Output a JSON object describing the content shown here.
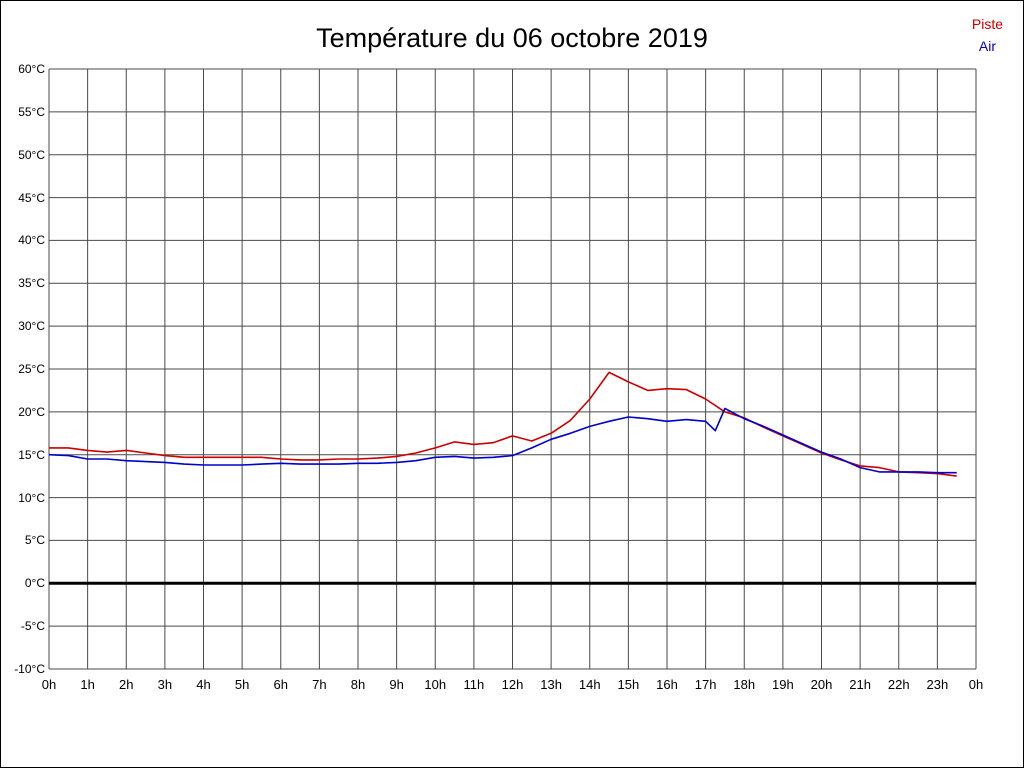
{
  "page": {
    "background": "#ffffff",
    "border_color": "#000000"
  },
  "chart_data": {
    "type": "line",
    "title": "Température du 06 octobre 2019",
    "xlabel": "",
    "ylabel": "",
    "xlim": [
      0,
      24
    ],
    "ylim": [
      -10,
      60
    ],
    "ytick_step": 5,
    "ytick_suffix": "°C",
    "x_tick_labels": [
      "0h",
      "1h",
      "2h",
      "3h",
      "4h",
      "5h",
      "6h",
      "7h",
      "8h",
      "9h",
      "10h",
      "11h",
      "12h",
      "13h",
      "14h",
      "15h",
      "16h",
      "17h",
      "18h",
      "19h",
      "20h",
      "21h",
      "22h",
      "23h",
      "0h"
    ],
    "grid": true,
    "grid_color": "#4a4a4a",
    "zero_line": {
      "value": 0,
      "color": "#000000",
      "width": 3
    },
    "legend_position": "top-right",
    "series": [
      {
        "name": "Piste",
        "color": "#cc0000",
        "x": [
          0,
          0.5,
          1,
          1.5,
          2,
          2.5,
          3,
          3.5,
          4,
          4.5,
          5,
          5.5,
          6,
          6.5,
          7,
          7.5,
          8,
          8.5,
          9,
          9.5,
          10,
          10.5,
          11,
          11.5,
          12,
          12.5,
          13,
          13.5,
          14,
          14.5,
          15,
          15.5,
          16,
          16.5,
          17,
          17.5,
          18,
          18.5,
          19,
          19.5,
          20,
          20.5,
          21,
          21.5,
          22,
          22.5,
          23,
          23.5
        ],
        "values": [
          15.8,
          15.8,
          15.5,
          15.3,
          15.5,
          15.2,
          14.9,
          14.7,
          14.7,
          14.7,
          14.7,
          14.7,
          14.5,
          14.4,
          14.4,
          14.5,
          14.5,
          14.6,
          14.8,
          15.2,
          15.8,
          16.5,
          16.2,
          16.4,
          17.2,
          16.6,
          17.5,
          19.0,
          21.5,
          24.6,
          23.5,
          22.5,
          22.7,
          22.6,
          21.5,
          20.0,
          19.3,
          18.2,
          17.2,
          16.2,
          15.2,
          14.4,
          13.7,
          13.5,
          13.0,
          12.9,
          12.8,
          12.5
        ]
      },
      {
        "name": "Air",
        "color": "#0000cc",
        "x": [
          0,
          0.5,
          1,
          1.5,
          2,
          2.5,
          3,
          3.5,
          4,
          4.5,
          5,
          5.5,
          6,
          6.5,
          7,
          7.5,
          8,
          8.5,
          9,
          9.5,
          10,
          10.5,
          11,
          11.5,
          12,
          12.5,
          13,
          13.5,
          14,
          14.5,
          15,
          15.5,
          16,
          16.5,
          17,
          17.25,
          17.5,
          18,
          18.5,
          19,
          19.5,
          20,
          20.5,
          21,
          21.5,
          22,
          22.5,
          23,
          23.5
        ],
        "values": [
          15.0,
          14.9,
          14.5,
          14.5,
          14.3,
          14.2,
          14.1,
          13.9,
          13.8,
          13.8,
          13.8,
          13.9,
          14.0,
          13.9,
          13.9,
          13.9,
          14.0,
          14.0,
          14.1,
          14.3,
          14.7,
          14.8,
          14.6,
          14.7,
          14.9,
          15.8,
          16.8,
          17.5,
          18.3,
          18.9,
          19.4,
          19.2,
          18.9,
          19.1,
          18.9,
          17.8,
          20.4,
          19.2,
          18.3,
          17.3,
          16.3,
          15.3,
          14.5,
          13.5,
          13.0,
          13.0,
          13.0,
          12.9,
          12.9
        ]
      }
    ]
  }
}
